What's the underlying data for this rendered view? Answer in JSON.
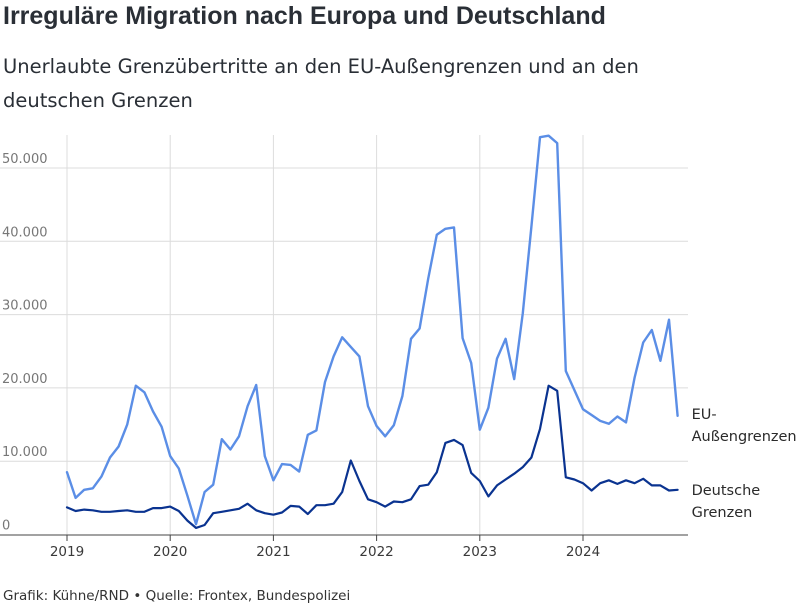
{
  "title": "Irreguläre Migration nach Europa und Deutschland",
  "subtitle": "Unerlaubte Grenzübertritte an den EU-Außengrenzen und an den deutschen Grenzen",
  "footer": "Grafik: Kühne/RND • Quelle: Frontex, Bundespolizei",
  "chart_data": {
    "type": "line",
    "grid": true,
    "ylim": [
      0,
      55000
    ],
    "y_ticks": [
      {
        "value": 0,
        "label": "0"
      },
      {
        "value": 10000,
        "label": "10.000"
      },
      {
        "value": 20000,
        "label": "20.000"
      },
      {
        "value": 30000,
        "label": "30.000"
      },
      {
        "value": 40000,
        "label": "40.000"
      },
      {
        "value": 50000,
        "label": "50.000"
      }
    ],
    "x_ticks": [
      "2019",
      "2020",
      "2021",
      "2022",
      "2023",
      "2024"
    ],
    "x_start": "2019-01",
    "series": [
      {
        "name": "EU-Außengrenzen",
        "label_lines": [
          "EU-",
          "Außengrenzen"
        ],
        "color": "#5b8ee6",
        "values": [
          8500,
          5000,
          6100,
          6300,
          7900,
          10500,
          12000,
          15000,
          20300,
          19400,
          16800,
          14700,
          10700,
          9000,
          5300,
          1400,
          5800,
          6800,
          13000,
          11600,
          13400,
          17500,
          20400,
          10700,
          7400,
          9600,
          9500,
          8600,
          13600,
          14200,
          20800,
          24300,
          26900,
          25600,
          24300,
          17500,
          14800,
          13400,
          14900,
          18900,
          26700,
          28100,
          34900,
          40900,
          41700,
          41900,
          26800,
          23400,
          14300,
          17300,
          24000,
          26700,
          21200,
          30200,
          42000,
          54200,
          54400,
          53400,
          22300,
          19700,
          17100,
          16300,
          15500,
          15100,
          16100,
          15300,
          21400,
          26200,
          27900,
          23700,
          29300,
          16200
        ]
      },
      {
        "name": "Deutsche Grenzen",
        "label_lines": [
          "Deutsche",
          "Grenzen"
        ],
        "color": "#0a3390",
        "values": [
          3700,
          3200,
          3400,
          3300,
          3100,
          3100,
          3200,
          3300,
          3100,
          3100,
          3600,
          3600,
          3800,
          3200,
          1900,
          900,
          1300,
          2900,
          3100,
          3300,
          3500,
          4200,
          3300,
          2900,
          2700,
          3000,
          3900,
          3800,
          2800,
          4000,
          4000,
          4200,
          5800,
          10100,
          7300,
          4800,
          4400,
          3800,
          4500,
          4400,
          4800,
          6600,
          6800,
          8500,
          12500,
          12900,
          12200,
          8400,
          7300,
          5200,
          6700,
          7500,
          8300,
          9200,
          10500,
          14400,
          20300,
          19600,
          7800,
          7500,
          7000,
          6000,
          7000,
          7400,
          6900,
          7400,
          7000,
          7600,
          6700,
          6700,
          6000,
          6100
        ]
      }
    ]
  }
}
